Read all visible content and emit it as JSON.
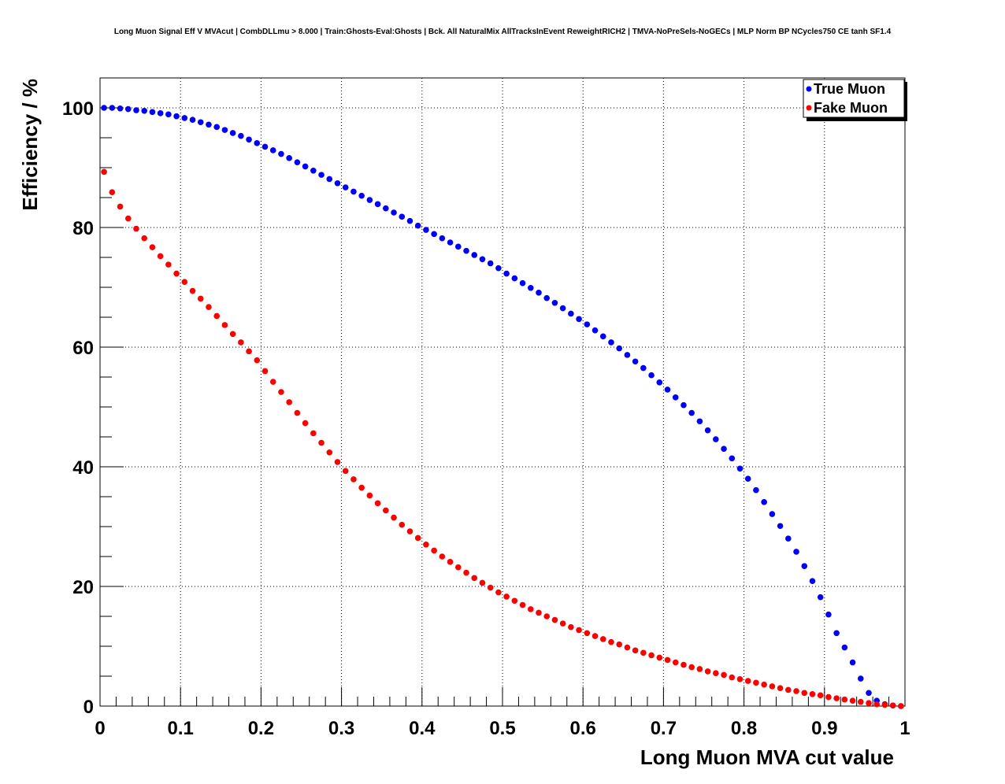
{
  "chart_data": {
    "type": "scatter",
    "title": "Long Muon Signal Eff V MVAcut | CombDLLmu > 8.000 | Train:Ghosts-Eval:Ghosts | Bck. All NaturalMix AllTracksInEvent ReweightRICH2 | TMVA-NoPreSels-NoGECs | MLP Norm BP NCycles750 CE tanh SF1.4",
    "xlabel": "Long Muon MVA cut value",
    "ylabel": "Efficiency / %",
    "xlim": [
      0,
      1
    ],
    "ylim": [
      0,
      105
    ],
    "x_ticks": [
      "0",
      "0.1",
      "0.2",
      "0.3",
      "0.4",
      "0.5",
      "0.6",
      "0.7",
      "0.8",
      "0.9",
      "1"
    ],
    "y_ticks": [
      "0",
      "20",
      "40",
      "60",
      "80",
      "100"
    ],
    "grid": true,
    "legend_position": "top-right",
    "series": [
      {
        "name": "True Muon",
        "color": "#0000ff",
        "x": [
          0.005,
          0.015,
          0.025,
          0.035,
          0.045,
          0.055,
          0.065,
          0.075,
          0.085,
          0.095,
          0.105,
          0.115,
          0.125,
          0.135,
          0.145,
          0.155,
          0.165,
          0.175,
          0.185,
          0.195,
          0.205,
          0.215,
          0.225,
          0.235,
          0.245,
          0.255,
          0.265,
          0.275,
          0.285,
          0.295,
          0.305,
          0.315,
          0.325,
          0.335,
          0.345,
          0.355,
          0.365,
          0.375,
          0.385,
          0.395,
          0.405,
          0.415,
          0.425,
          0.435,
          0.445,
          0.455,
          0.465,
          0.475,
          0.485,
          0.495,
          0.505,
          0.515,
          0.525,
          0.535,
          0.545,
          0.555,
          0.565,
          0.575,
          0.585,
          0.595,
          0.605,
          0.615,
          0.625,
          0.635,
          0.645,
          0.655,
          0.665,
          0.675,
          0.685,
          0.695,
          0.705,
          0.715,
          0.725,
          0.735,
          0.745,
          0.755,
          0.765,
          0.775,
          0.785,
          0.795,
          0.805,
          0.815,
          0.825,
          0.835,
          0.845,
          0.855,
          0.865,
          0.875,
          0.885,
          0.895,
          0.905,
          0.915,
          0.925,
          0.935,
          0.945,
          0.955,
          0.965,
          0.975,
          0.985,
          0.995
        ],
        "y": [
          100,
          100,
          99.9,
          99.8,
          99.6,
          99.5,
          99.3,
          99.1,
          98.9,
          98.6,
          98.3,
          98.0,
          97.6,
          97.2,
          96.8,
          96.3,
          95.8,
          95.3,
          94.7,
          94.1,
          93.5,
          92.9,
          92.3,
          91.6,
          90.9,
          90.2,
          89.5,
          88.8,
          88.1,
          87.4,
          86.7,
          86.0,
          85.3,
          84.6,
          83.9,
          83.2,
          82.5,
          81.8,
          81.1,
          80.3,
          79.6,
          78.9,
          78.2,
          77.5,
          76.8,
          76.1,
          75.4,
          74.7,
          74.0,
          73.2,
          72.3,
          71.5,
          70.7,
          69.9,
          69.1,
          68.2,
          67.4,
          66.5,
          65.6,
          64.7,
          63.8,
          62.8,
          61.8,
          60.8,
          59.8,
          58.7,
          57.6,
          56.5,
          55.3,
          54.1,
          52.9,
          51.6,
          50.3,
          49.0,
          47.6,
          46.1,
          44.6,
          43.0,
          41.4,
          39.7,
          38.0,
          36.1,
          34.1,
          32.1,
          30.1,
          28.0,
          25.8,
          23.4,
          20.9,
          18.2,
          15.3,
          12.2,
          9.8,
          7.3,
          4.6,
          2.2,
          0.9,
          0.3,
          0.1,
          0.0
        ]
      },
      {
        "name": "Fake Muon",
        "color": "#ff0000",
        "x": [
          0.005,
          0.015,
          0.025,
          0.035,
          0.045,
          0.055,
          0.065,
          0.075,
          0.085,
          0.095,
          0.105,
          0.115,
          0.125,
          0.135,
          0.145,
          0.155,
          0.165,
          0.175,
          0.185,
          0.195,
          0.205,
          0.215,
          0.225,
          0.235,
          0.245,
          0.255,
          0.265,
          0.275,
          0.285,
          0.295,
          0.305,
          0.315,
          0.325,
          0.335,
          0.345,
          0.355,
          0.365,
          0.375,
          0.385,
          0.395,
          0.405,
          0.415,
          0.425,
          0.435,
          0.445,
          0.455,
          0.465,
          0.475,
          0.485,
          0.495,
          0.505,
          0.515,
          0.525,
          0.535,
          0.545,
          0.555,
          0.565,
          0.575,
          0.585,
          0.595,
          0.605,
          0.615,
          0.625,
          0.635,
          0.645,
          0.655,
          0.665,
          0.675,
          0.685,
          0.695,
          0.705,
          0.715,
          0.725,
          0.735,
          0.745,
          0.755,
          0.765,
          0.775,
          0.785,
          0.795,
          0.805,
          0.815,
          0.825,
          0.835,
          0.845,
          0.855,
          0.865,
          0.875,
          0.885,
          0.895,
          0.905,
          0.915,
          0.925,
          0.935,
          0.945,
          0.955,
          0.965,
          0.975,
          0.985,
          0.995
        ],
        "y": [
          89.3,
          85.9,
          83.5,
          81.5,
          79.8,
          78.2,
          76.7,
          75.2,
          73.8,
          72.3,
          70.9,
          69.4,
          68.1,
          66.7,
          65.2,
          63.7,
          62.2,
          60.8,
          59.3,
          57.8,
          56.0,
          54.2,
          52.5,
          50.8,
          49.0,
          47.3,
          45.6,
          44.0,
          42.4,
          40.8,
          39.3,
          37.9,
          36.5,
          35.2,
          33.9,
          32.7,
          31.5,
          30.3,
          29.2,
          28.1,
          27.0,
          26.0,
          25.0,
          24.1,
          23.2,
          22.3,
          21.4,
          20.6,
          19.8,
          19.0,
          18.3,
          17.6,
          16.9,
          16.2,
          15.6,
          15.0,
          14.4,
          13.8,
          13.2,
          12.7,
          12.2,
          11.7,
          11.2,
          10.7,
          10.3,
          9.8,
          9.3,
          8.9,
          8.5,
          8.1,
          7.7,
          7.3,
          6.9,
          6.5,
          6.2,
          5.8,
          5.5,
          5.2,
          4.8,
          4.5,
          4.2,
          3.9,
          3.6,
          3.3,
          3.0,
          2.7,
          2.5,
          2.2,
          2.0,
          1.8,
          1.5,
          1.3,
          1.1,
          0.9,
          0.7,
          0.5,
          0.3,
          0.2,
          0.1,
          0.0
        ]
      }
    ]
  }
}
